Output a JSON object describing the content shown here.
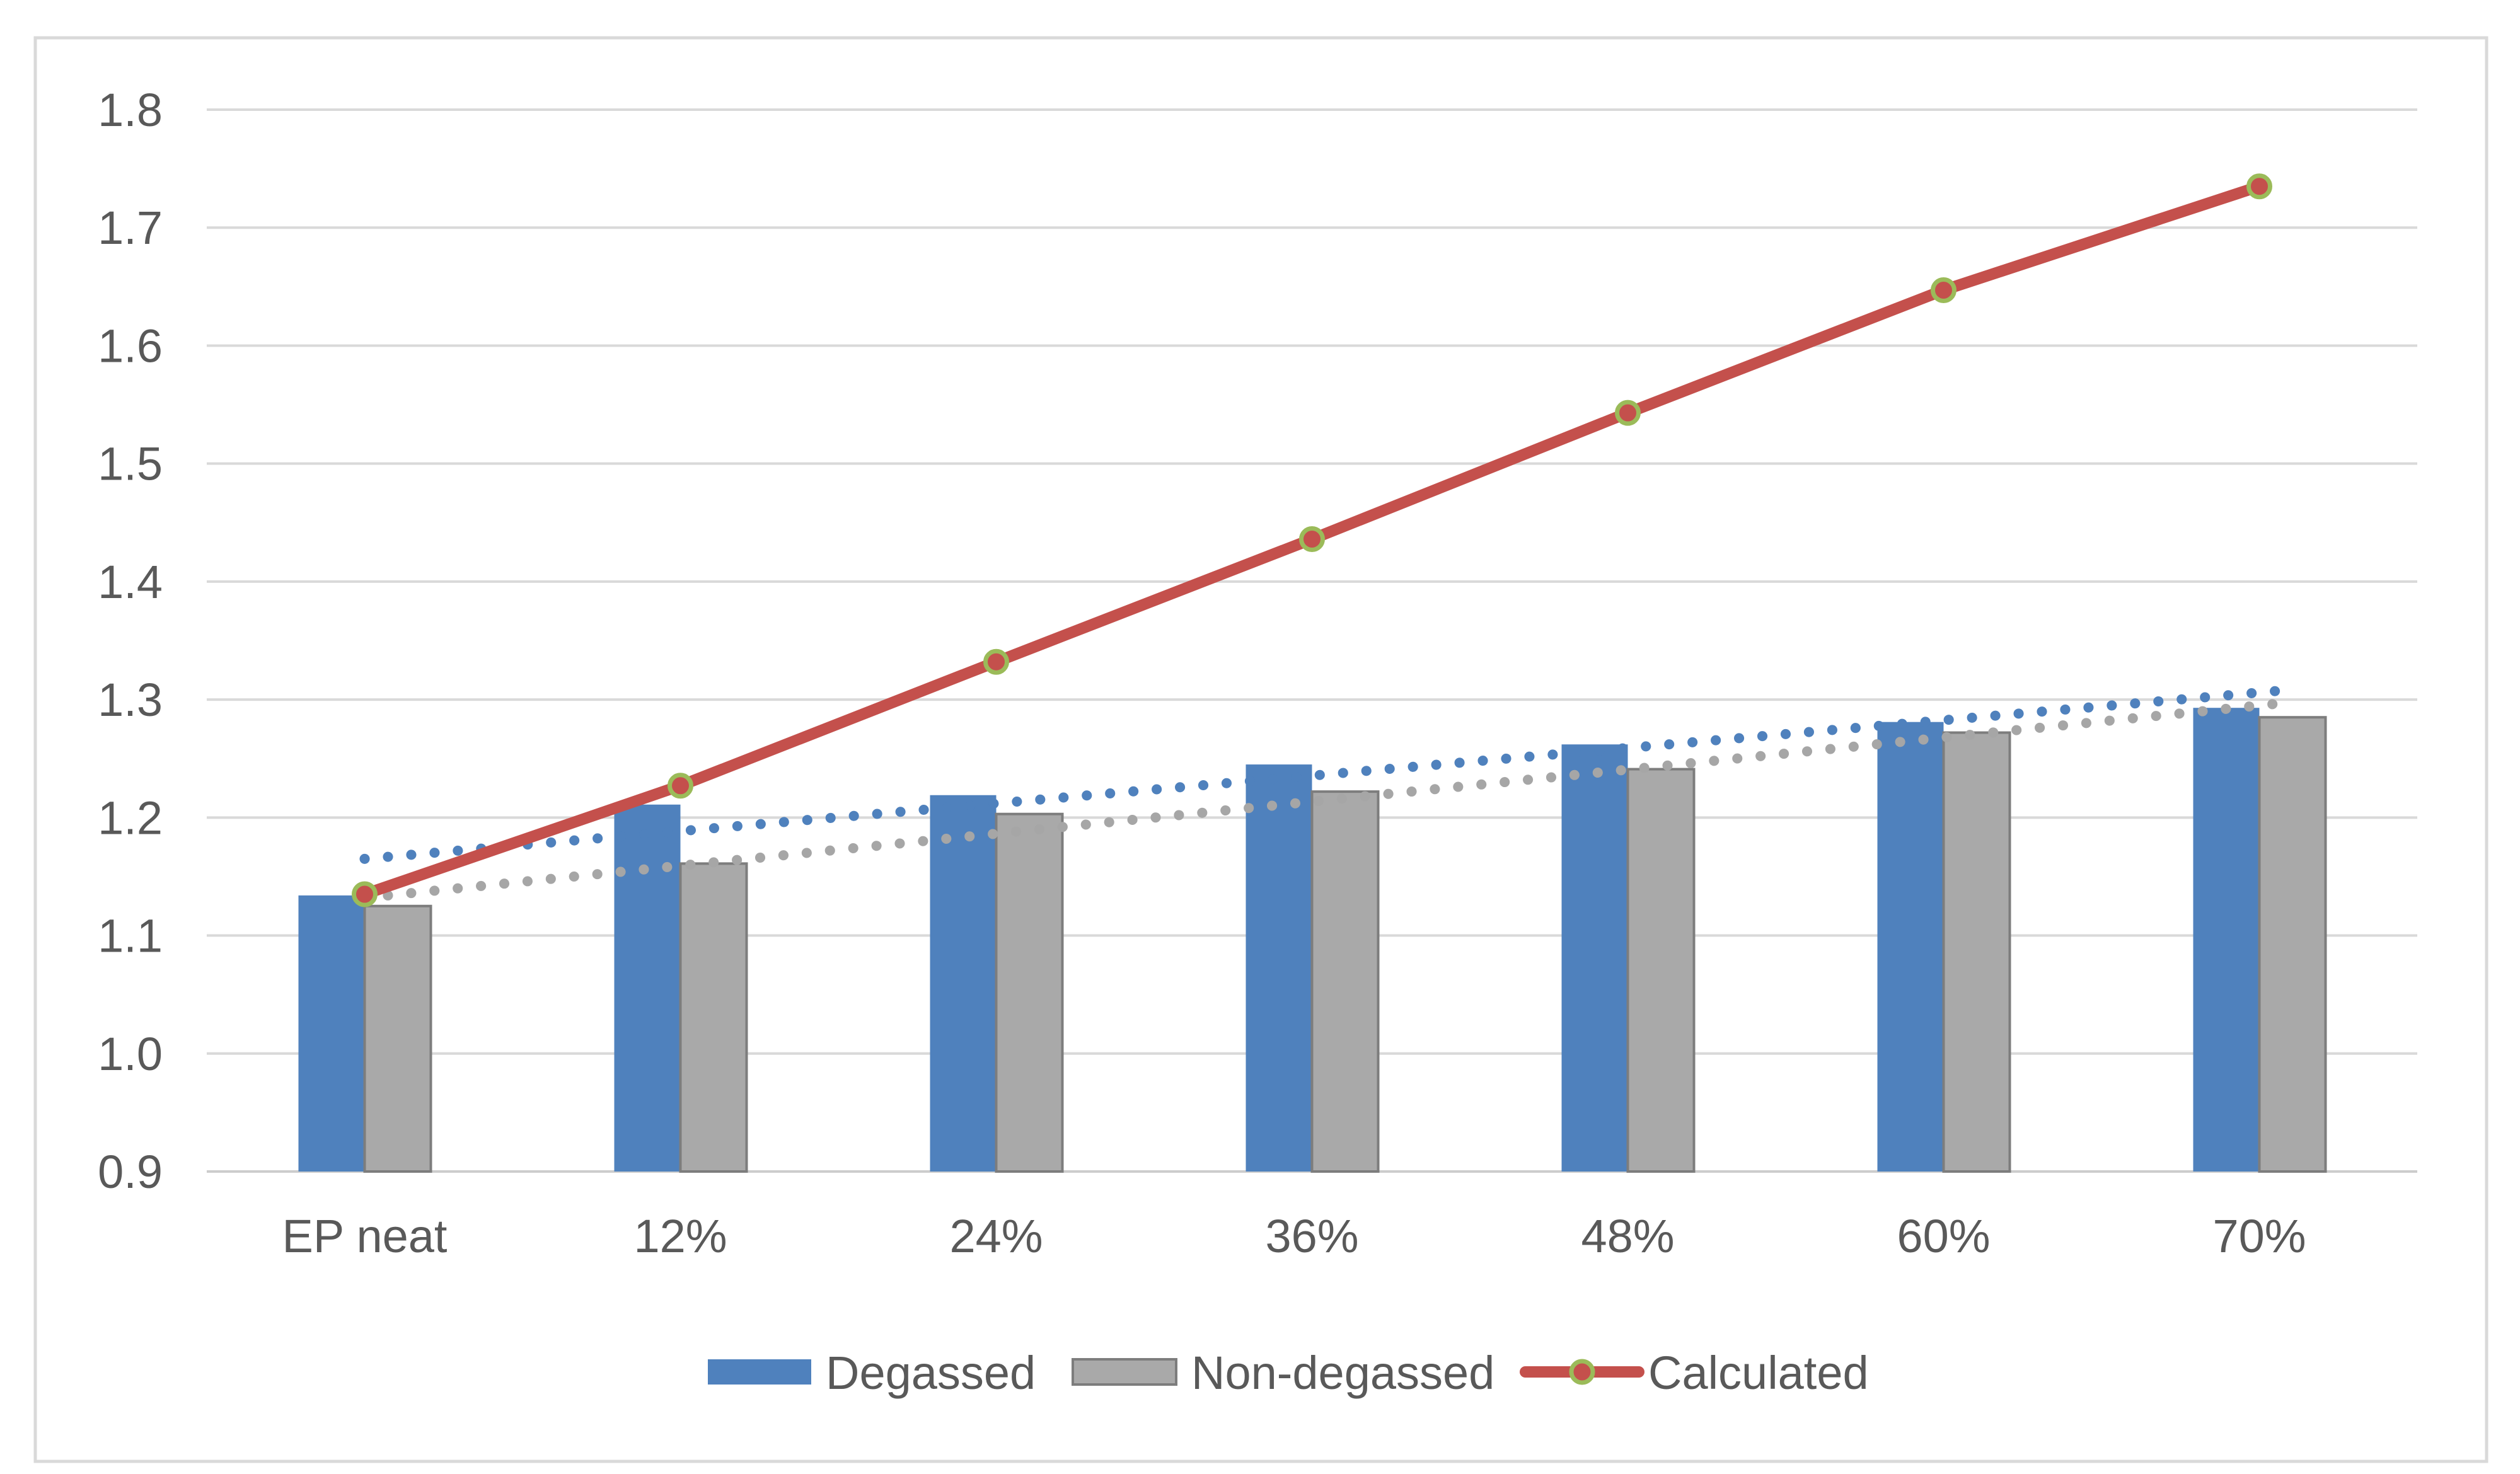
{
  "chart_data": {
    "type": "bar",
    "subtype": "grouped-columns-with-line-overlay",
    "title": "",
    "xlabel": "",
    "ylabel": "",
    "categories": [
      "EP neat",
      "12%",
      "24%",
      "36%",
      "48%",
      "60%",
      "70%"
    ],
    "series": [
      {
        "name": "Degassed",
        "type": "column",
        "color": "#4F81BD",
        "values": [
          1.134,
          1.211,
          1.219,
          1.245,
          1.262,
          1.281,
          1.293
        ]
      },
      {
        "name": "Non-degassed",
        "type": "column",
        "color": "#A9A9A9",
        "border_color": "#7D7D7D",
        "values": [
          1.125,
          1.161,
          1.203,
          1.222,
          1.241,
          1.272,
          1.285
        ]
      },
      {
        "name": "Calculated",
        "type": "line",
        "color": "#C4504C",
        "marker_fill": "#C4504C",
        "marker_ring": "#9BBB59",
        "values": [
          1.135,
          1.227,
          1.332,
          1.436,
          1.543,
          1.647,
          1.735
        ]
      }
    ],
    "trendlines": [
      {
        "series": "Degassed",
        "style": "dotted",
        "color": "#4F81BD",
        "start_value": 1.165,
        "end_value": 1.306
      },
      {
        "series": "Non-degassed",
        "style": "dotted",
        "color": "#A6A6A6",
        "start_value": 1.132,
        "end_value": 1.295
      }
    ],
    "ylim": [
      0.9,
      1.8
    ],
    "ytick_step": 0.1,
    "ytick_labels": [
      "0.9",
      "1.0",
      "1.1",
      "1.2",
      "1.3",
      "1.4",
      "1.5",
      "1.6",
      "1.7",
      "1.8"
    ],
    "grid": true,
    "legend_position": "bottom",
    "colors": {
      "gridline": "#D9D9D9",
      "axis_line": "#CCCCCC",
      "tick_text": "#595959",
      "frame_border": "#D9D9D9",
      "background": "#FFFFFF"
    }
  },
  "legend": {
    "items": [
      {
        "label": "Degassed"
      },
      {
        "label": "Non-degassed"
      },
      {
        "label": "Calculated"
      }
    ]
  }
}
